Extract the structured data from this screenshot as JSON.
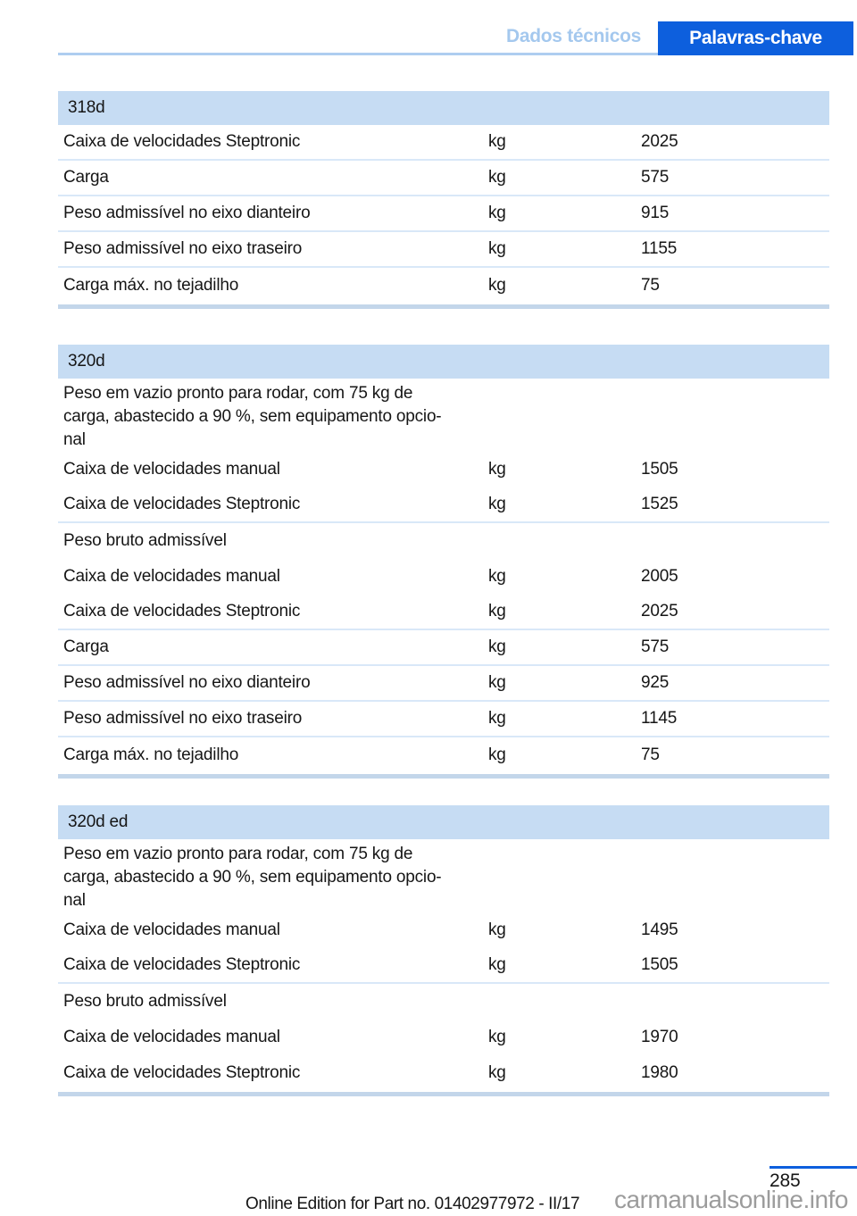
{
  "header": {
    "tab_inactive": "Dados técnicos",
    "tab_active": "Palavras-chave"
  },
  "sections": [
    {
      "title": "318d",
      "description": null,
      "rows": [
        {
          "label": "Caixa de velocidades Steptronic",
          "unit": "kg",
          "value": "2025",
          "divider": true
        },
        {
          "label": "Carga",
          "unit": "kg",
          "value": "575",
          "divider": true
        },
        {
          "label": "Peso admissível no eixo dianteiro",
          "unit": "kg",
          "value": "915",
          "divider": true
        },
        {
          "label": "Peso admissível no eixo traseiro",
          "unit": "kg",
          "value": "1155",
          "divider": true
        },
        {
          "label": "Carga máx. no tejadilho",
          "unit": "kg",
          "value": "75",
          "divider": false
        }
      ]
    },
    {
      "title": "320d",
      "description": "Peso em vazio pronto para rodar, com 75 kg de\ncarga, abastecido a 90 %, sem equipamento opcio-\nnal",
      "rows": [
        {
          "label": "Caixa de velocidades manual",
          "unit": "kg",
          "value": "1505",
          "divider": false
        },
        {
          "label": "Caixa de velocidades Steptronic",
          "unit": "kg",
          "value": "1525",
          "divider": true
        },
        {
          "label": "Peso bruto admissível",
          "unit": "",
          "value": "",
          "divider": false
        },
        {
          "label": "Caixa de velocidades manual",
          "unit": "kg",
          "value": "2005",
          "divider": false
        },
        {
          "label": "Caixa de velocidades Steptronic",
          "unit": "kg",
          "value": "2025",
          "divider": true
        },
        {
          "label": "Carga",
          "unit": "kg",
          "value": "575",
          "divider": true
        },
        {
          "label": "Peso admissível no eixo dianteiro",
          "unit": "kg",
          "value": "925",
          "divider": true
        },
        {
          "label": "Peso admissível no eixo traseiro",
          "unit": "kg",
          "value": "1145",
          "divider": true
        },
        {
          "label": "Carga máx. no tejadilho",
          "unit": "kg",
          "value": "75",
          "divider": false
        }
      ]
    },
    {
      "title": "320d ed",
      "description": "Peso em vazio pronto para rodar, com 75 kg de\ncarga, abastecido a 90 %, sem equipamento opcio-\nnal",
      "rows": [
        {
          "label": "Caixa de velocidades manual",
          "unit": "kg",
          "value": "1495",
          "divider": false
        },
        {
          "label": "Caixa de velocidades Steptronic",
          "unit": "kg",
          "value": "1505",
          "divider": true
        },
        {
          "label": "Peso bruto admissível",
          "unit": "",
          "value": "",
          "divider": false
        },
        {
          "label": "Caixa de velocidades manual",
          "unit": "kg",
          "value": "1970",
          "divider": false
        },
        {
          "label": "Caixa de velocidades Steptronic",
          "unit": "kg",
          "value": "1980",
          "divider": false
        }
      ]
    }
  ],
  "footer": {
    "page_number": "285",
    "edition_text": "Online Edition for Part no. 01402977972 - II/17",
    "watermark": "carmanualsonline.info"
  },
  "colors": {
    "accent_blue": "#0d5fdd",
    "tab_inactive_text": "#a4c8ee",
    "header_rule": "#aecdf0",
    "table_header_bg": "#c6dcf3",
    "row_divider": "#d9e8f8",
    "table_end_bar": "#c3d6ea",
    "text": "#161616",
    "watermark_gray": "#9c9c9c"
  }
}
